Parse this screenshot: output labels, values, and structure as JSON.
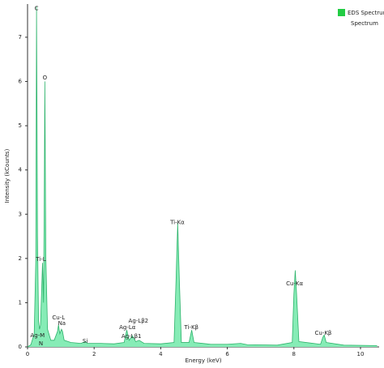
{
  "chart_data": {
    "type": "area",
    "xlabel": "Energy (keV)",
    "ylabel": "Intensity (kCounts)",
    "legend": {
      "title": "EDS Spectrum",
      "position": "top-right"
    },
    "xlim": [
      0,
      10.56
    ],
    "ylim": [
      0,
      7.75
    ],
    "xticks": [
      0,
      2,
      4,
      6,
      8,
      10
    ],
    "yticks": [
      0,
      1,
      2,
      3,
      4,
      5,
      6,
      7
    ],
    "x": [
      0,
      0.1,
      0.2,
      0.25,
      0.27,
      0.3,
      0.33,
      0.36,
      0.39,
      0.42,
      0.45,
      0.48,
      0.5,
      0.52,
      0.55,
      0.6,
      0.7,
      0.8,
      0.9,
      0.93,
      0.97,
      1.02,
      1.05,
      1.1,
      1.3,
      1.6,
      1.74,
      1.8,
      2.2,
      2.6,
      2.9,
      2.98,
      3.05,
      3.15,
      3.25,
      3.35,
      3.5,
      4.0,
      4.4,
      4.46,
      4.51,
      4.56,
      4.62,
      4.85,
      4.93,
      5.0,
      5.5,
      6.0,
      6.4,
      6.6,
      7.5,
      7.95,
      8.0,
      8.04,
      8.08,
      8.15,
      8.8,
      8.87,
      8.91,
      8.97,
      9.5,
      10.5
    ],
    "series": [
      {
        "name": "Spectrum",
        "color": "#2db36b",
        "fill": "#86ecb6",
        "values": [
          0,
          0.05,
          0.3,
          2,
          7.7,
          2.5,
          0.6,
          0.4,
          0.5,
          1.2,
          1.9,
          1.0,
          3,
          6.0,
          2,
          0.4,
          0.15,
          0.15,
          0.35,
          0.5,
          0.3,
          0.4,
          0.35,
          0.15,
          0.1,
          0.08,
          0.12,
          0.08,
          0.08,
          0.07,
          0.1,
          0.38,
          0.15,
          0.25,
          0.12,
          0.15,
          0.08,
          0.07,
          0.1,
          1.5,
          2.8,
          1.5,
          0.1,
          0.1,
          0.38,
          0.1,
          0.06,
          0.06,
          0.08,
          0.05,
          0.04,
          0.1,
          1.2,
          1.73,
          1.2,
          0.12,
          0.06,
          0.22,
          0.27,
          0.1,
          0.04,
          0.03
        ]
      }
    ],
    "legend_color": "#22cc44",
    "annotations": [
      {
        "text": "C",
        "x": 0.27,
        "y": 7.65
      },
      {
        "text": "O",
        "x": 0.52,
        "y": 6.08
      },
      {
        "text": "Ti-L",
        "x": 0.4,
        "y": 1.98
      },
      {
        "text": "N",
        "x": 0.4,
        "y": 0.07
      },
      {
        "text": "Ag-M",
        "x": 0.3,
        "y": 0.26
      },
      {
        "text": "Cu-L",
        "x": 0.93,
        "y": 0.66
      },
      {
        "text": "Na",
        "x": 1.03,
        "y": 0.53
      },
      {
        "text": "Si",
        "x": 1.73,
        "y": 0.13
      },
      {
        "text": "Ag-Lα",
        "x": 3.0,
        "y": 0.44
      },
      {
        "text": "Ag-Lβ1",
        "x": 3.12,
        "y": 0.24
      },
      {
        "text": "Ag-Lβ2",
        "x": 3.33,
        "y": 0.59
      },
      {
        "text": "Ti-Kα",
        "x": 4.5,
        "y": 2.81
      },
      {
        "text": "Ti-Kβ",
        "x": 4.92,
        "y": 0.44
      },
      {
        "text": "Cu-Kα",
        "x": 8.02,
        "y": 1.43
      },
      {
        "text": "Cu-Kβ",
        "x": 8.88,
        "y": 0.31
      }
    ]
  }
}
